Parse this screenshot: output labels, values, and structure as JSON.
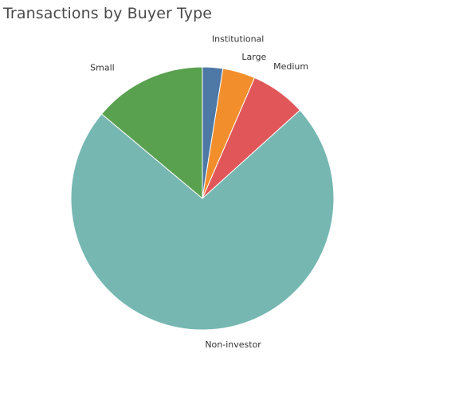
{
  "chart_data": {
    "type": "pie",
    "title": "Transactions by Buyer Type",
    "start_angle_deg": 0,
    "direction": "clockwise",
    "legend": "none",
    "slices": [
      {
        "label": "Institutional",
        "value": 2.5,
        "color": "#4e79a7"
      },
      {
        "label": "Large",
        "value": 4.0,
        "color": "#f28e2b"
      },
      {
        "label": "Medium",
        "value": 6.8,
        "color": "#e15759"
      },
      {
        "label": "Non-investor",
        "value": 72.8,
        "color": "#76b7b2"
      },
      {
        "label": "Small",
        "value": 13.9,
        "color": "#59a14f"
      }
    ]
  }
}
